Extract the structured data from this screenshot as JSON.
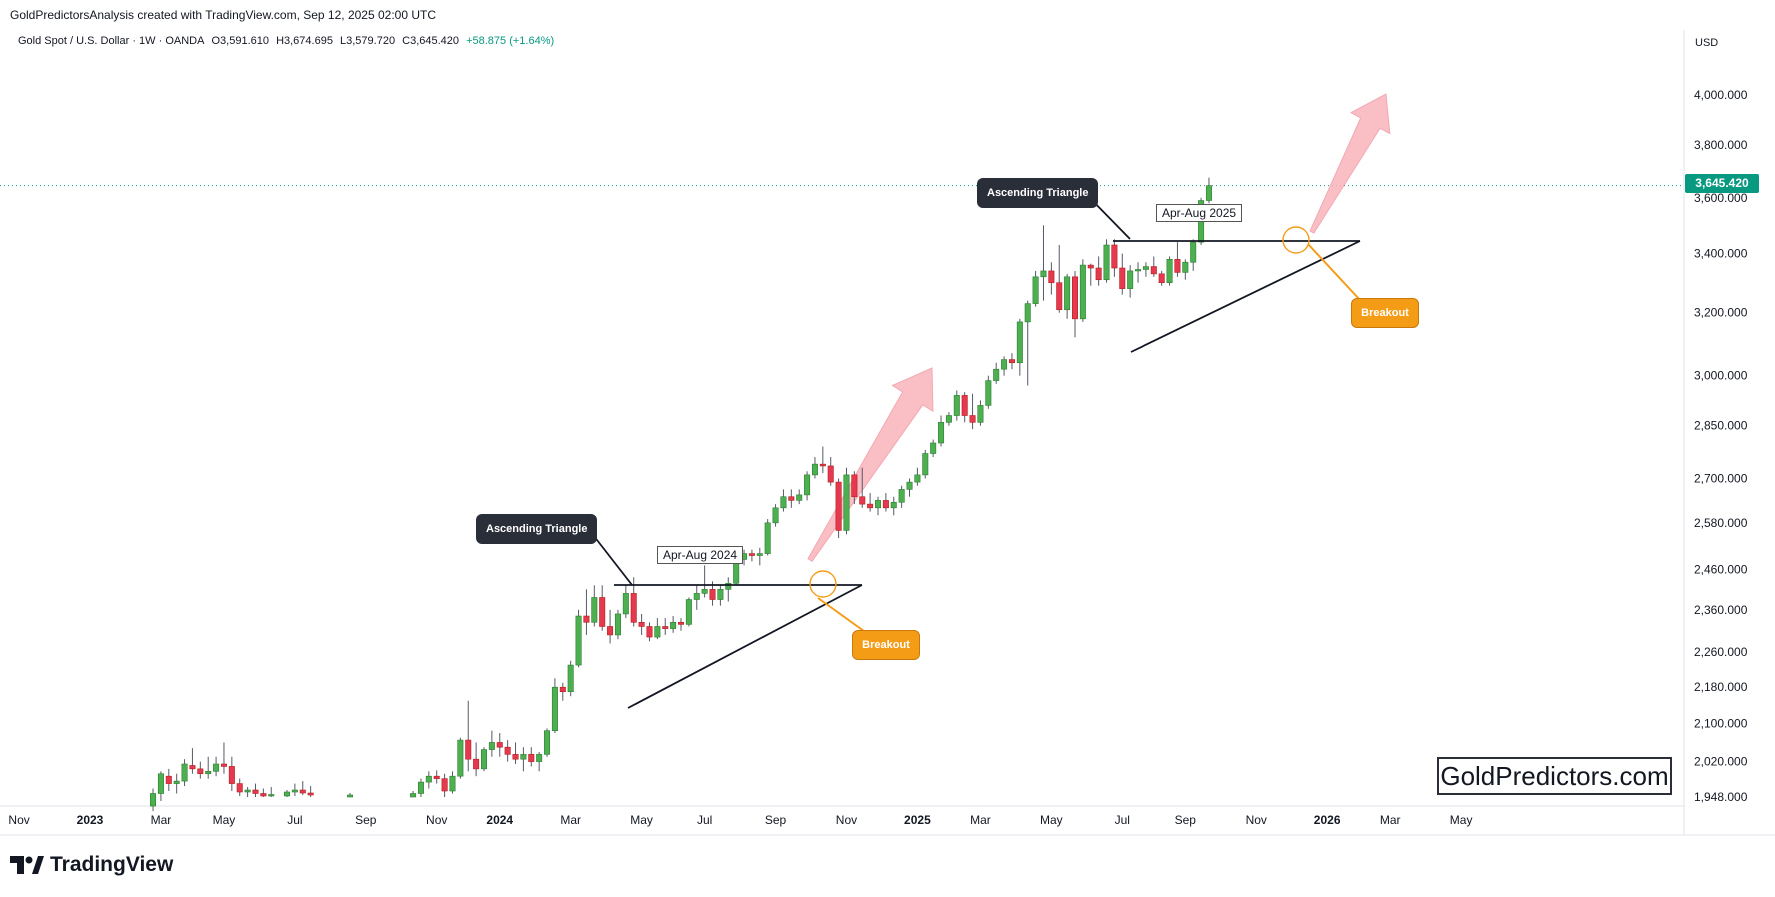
{
  "header": {
    "attribution": "GoldPredictorsAnalysis created with TradingView.com, Sep 12, 2025 02:00 UTC"
  },
  "legend": {
    "symbol": "Gold Spot / U.S. Dollar · 1W · OANDA",
    "open": "O3,591.610",
    "high": "H3,674.695",
    "low": "L3,579.720",
    "close": "C3,645.420",
    "change": "+58.875 (+1.64%)"
  },
  "currency_label": "USD",
  "last_price_tag": "3,645.420",
  "watermark": "GoldPredictors.com",
  "brand": "TradingView",
  "annotations": {
    "triangle_1": {
      "title": "Ascending Triangle",
      "period": "Apr-Aug 2024",
      "breakout": "Breakout"
    },
    "triangle_2": {
      "title": "Ascending Triangle",
      "period": "Apr-Aug 2025",
      "breakout": "Breakout"
    }
  },
  "colors": {
    "up": "#4caf50",
    "down": "#e53950",
    "up_border": "#2e7d32",
    "down_border": "#b71c1c",
    "last_price": "#089981",
    "arrow": "#f8b4bc",
    "callout_dark": "#2a2e39",
    "callout_orange": "#f59c17"
  },
  "chart_data": {
    "type": "candlestick",
    "interval": "1W",
    "y_scale": "log",
    "ylim": [
      1948,
      4100
    ],
    "y_ticks": [
      {
        "value": 4000,
        "label": "4,000.000"
      },
      {
        "value": 3800,
        "label": "3,800.000"
      },
      {
        "value": 3600,
        "label": "3,600.000"
      },
      {
        "value": 3400,
        "label": "3,400.000"
      },
      {
        "value": 3200,
        "label": "3,200.000"
      },
      {
        "value": 3000,
        "label": "3,000.000"
      },
      {
        "value": 2850,
        "label": "2,850.000"
      },
      {
        "value": 2700,
        "label": "2,700.000"
      },
      {
        "value": 2580,
        "label": "2,580.000"
      },
      {
        "value": 2460,
        "label": "2,460.000"
      },
      {
        "value": 2360,
        "label": "2,360.000"
      },
      {
        "value": 2260,
        "label": "2,260.000"
      },
      {
        "value": 2180,
        "label": "2,180.000"
      },
      {
        "value": 2100,
        "label": "2,100.000"
      },
      {
        "value": 2020,
        "label": "2,020.000"
      },
      {
        "value": 1948,
        "label": "1,948.000"
      }
    ],
    "x_ticks": [
      {
        "label": "Nov",
        "bold": false,
        "week": -9
      },
      {
        "label": "2023",
        "bold": true,
        "week": 0
      },
      {
        "label": "Mar",
        "bold": false,
        "week": 9
      },
      {
        "label": "May",
        "bold": false,
        "week": 17
      },
      {
        "label": "Jul",
        "bold": false,
        "week": 26
      },
      {
        "label": "Sep",
        "bold": false,
        "week": 35
      },
      {
        "label": "Nov",
        "bold": false,
        "week": 44
      },
      {
        "label": "2024",
        "bold": true,
        "week": 52
      },
      {
        "label": "Mar",
        "bold": false,
        "week": 61
      },
      {
        "label": "May",
        "bold": false,
        "week": 70
      },
      {
        "label": "Jul",
        "bold": false,
        "week": 78
      },
      {
        "label": "Sep",
        "bold": false,
        "week": 87
      },
      {
        "label": "Nov",
        "bold": false,
        "week": 96
      },
      {
        "label": "2025",
        "bold": true,
        "week": 105
      },
      {
        "label": "Mar",
        "bold": false,
        "week": 113
      },
      {
        "label": "May",
        "bold": false,
        "week": 122
      },
      {
        "label": "Jul",
        "bold": false,
        "week": 131
      },
      {
        "label": "Sep",
        "bold": false,
        "week": 139
      },
      {
        "label": "Nov",
        "bold": false,
        "week": 148
      },
      {
        "label": "2026",
        "bold": true,
        "week": 157
      },
      {
        "label": "Mar",
        "bold": false,
        "week": 165
      },
      {
        "label": "May",
        "bold": false,
        "week": 174
      }
    ],
    "last_close": 3645.42,
    "candles": [
      {
        "w": 8,
        "o": 1930,
        "h": 1965,
        "l": 1920,
        "c": 1955
      },
      {
        "w": 9,
        "o": 1955,
        "h": 2000,
        "l": 1940,
        "c": 1995
      },
      {
        "w": 10,
        "o": 1990,
        "h": 2005,
        "l": 1960,
        "c": 1975
      },
      {
        "w": 11,
        "o": 1975,
        "h": 1995,
        "l": 1955,
        "c": 1980
      },
      {
        "w": 12,
        "o": 1980,
        "h": 2025,
        "l": 1970,
        "c": 2015
      },
      {
        "w": 13,
        "o": 2012,
        "h": 2048,
        "l": 1995,
        "c": 2005
      },
      {
        "w": 14,
        "o": 2005,
        "h": 2020,
        "l": 1985,
        "c": 1995
      },
      {
        "w": 15,
        "o": 1995,
        "h": 2030,
        "l": 1985,
        "c": 2000
      },
      {
        "w": 16,
        "o": 2000,
        "h": 2030,
        "l": 1990,
        "c": 2015
      },
      {
        "w": 17,
        "o": 2015,
        "h": 2060,
        "l": 1995,
        "c": 2010
      },
      {
        "w": 18,
        "o": 2010,
        "h": 2030,
        "l": 1960,
        "c": 1975
      },
      {
        "w": 19,
        "o": 1975,
        "h": 1985,
        "l": 1950,
        "c": 1958
      },
      {
        "w": 20,
        "o": 1958,
        "h": 1968,
        "l": 1948,
        "c": 1962
      },
      {
        "w": 21,
        "o": 1962,
        "h": 1975,
        "l": 1948,
        "c": 1955
      },
      {
        "w": 22,
        "o": 1955,
        "h": 1965,
        "l": 1948,
        "c": 1950
      },
      {
        "w": 23,
        "o": 1950,
        "h": 1968,
        "l": 1948,
        "c": 1953
      },
      {
        "w": 25,
        "o": 1950,
        "h": 1962,
        "l": 1948,
        "c": 1958
      },
      {
        "w": 26,
        "o": 1958,
        "h": 1975,
        "l": 1950,
        "c": 1962
      },
      {
        "w": 27,
        "o": 1962,
        "h": 1980,
        "l": 1952,
        "c": 1956
      },
      {
        "w": 28,
        "o": 1956,
        "h": 1970,
        "l": 1948,
        "c": 1952
      },
      {
        "w": 33,
        "o": 1948,
        "h": 1956,
        "l": 1948,
        "c": 1952
      },
      {
        "w": 41,
        "o": 1948,
        "h": 1960,
        "l": 1948,
        "c": 1955
      },
      {
        "w": 42,
        "o": 1955,
        "h": 1985,
        "l": 1948,
        "c": 1978
      },
      {
        "w": 43,
        "o": 1978,
        "h": 2000,
        "l": 1965,
        "c": 1990
      },
      {
        "w": 44,
        "o": 1990,
        "h": 2002,
        "l": 1975,
        "c": 1985
      },
      {
        "w": 45,
        "o": 1985,
        "h": 1995,
        "l": 1948,
        "c": 1960
      },
      {
        "w": 46,
        "o": 1960,
        "h": 2000,
        "l": 1955,
        "c": 1990
      },
      {
        "w": 47,
        "o": 1990,
        "h": 2070,
        "l": 1985,
        "c": 2065
      },
      {
        "w": 48,
        "o": 2065,
        "h": 2150,
        "l": 2000,
        "c": 2025
      },
      {
        "w": 49,
        "o": 2025,
        "h": 2060,
        "l": 1990,
        "c": 2005
      },
      {
        "w": 50,
        "o": 2005,
        "h": 2050,
        "l": 2000,
        "c": 2045
      },
      {
        "w": 51,
        "o": 2045,
        "h": 2085,
        "l": 2030,
        "c": 2060
      },
      {
        "w": 52,
        "o": 2060,
        "h": 2080,
        "l": 2030,
        "c": 2050
      },
      {
        "w": 53,
        "o": 2050,
        "h": 2065,
        "l": 2020,
        "c": 2035
      },
      {
        "w": 54,
        "o": 2035,
        "h": 2060,
        "l": 2015,
        "c": 2025
      },
      {
        "w": 55,
        "o": 2025,
        "h": 2050,
        "l": 2000,
        "c": 2035
      },
      {
        "w": 56,
        "o": 2035,
        "h": 2050,
        "l": 2010,
        "c": 2020
      },
      {
        "w": 57,
        "o": 2020,
        "h": 2040,
        "l": 2000,
        "c": 2035
      },
      {
        "w": 58,
        "o": 2035,
        "h": 2090,
        "l": 2030,
        "c": 2085
      },
      {
        "w": 59,
        "o": 2085,
        "h": 2200,
        "l": 2080,
        "c": 2180
      },
      {
        "w": 60,
        "o": 2180,
        "h": 2190,
        "l": 2150,
        "c": 2170
      },
      {
        "w": 61,
        "o": 2170,
        "h": 2240,
        "l": 2160,
        "c": 2230
      },
      {
        "w": 62,
        "o": 2230,
        "h": 2360,
        "l": 2225,
        "c": 2345
      },
      {
        "w": 63,
        "o": 2345,
        "h": 2410,
        "l": 2300,
        "c": 2330
      },
      {
        "w": 64,
        "o": 2330,
        "h": 2420,
        "l": 2320,
        "c": 2390
      },
      {
        "w": 65,
        "o": 2390,
        "h": 2420,
        "l": 2310,
        "c": 2320
      },
      {
        "w": 66,
        "o": 2320,
        "h": 2360,
        "l": 2280,
        "c": 2300
      },
      {
        "w": 67,
        "o": 2300,
        "h": 2360,
        "l": 2290,
        "c": 2350
      },
      {
        "w": 68,
        "o": 2350,
        "h": 2420,
        "l": 2340,
        "c": 2400
      },
      {
        "w": 69,
        "o": 2400,
        "h": 2440,
        "l": 2320,
        "c": 2330
      },
      {
        "w": 70,
        "o": 2330,
        "h": 2350,
        "l": 2300,
        "c": 2320
      },
      {
        "w": 71,
        "o": 2320,
        "h": 2330,
        "l": 2285,
        "c": 2295
      },
      {
        "w": 72,
        "o": 2295,
        "h": 2340,
        "l": 2290,
        "c": 2320
      },
      {
        "w": 73,
        "o": 2320,
        "h": 2340,
        "l": 2300,
        "c": 2315
      },
      {
        "w": 74,
        "o": 2315,
        "h": 2345,
        "l": 2305,
        "c": 2330
      },
      {
        "w": 75,
        "o": 2330,
        "h": 2340,
        "l": 2310,
        "c": 2325
      },
      {
        "w": 76,
        "o": 2325,
        "h": 2390,
        "l": 2320,
        "c": 2385
      },
      {
        "w": 77,
        "o": 2385,
        "h": 2420,
        "l": 2360,
        "c": 2400
      },
      {
        "w": 78,
        "o": 2400,
        "h": 2470,
        "l": 2390,
        "c": 2410
      },
      {
        "w": 79,
        "o": 2410,
        "h": 2430,
        "l": 2370,
        "c": 2385
      },
      {
        "w": 80,
        "o": 2385,
        "h": 2420,
        "l": 2370,
        "c": 2410
      },
      {
        "w": 81,
        "o": 2410,
        "h": 2440,
        "l": 2380,
        "c": 2425
      },
      {
        "w": 82,
        "o": 2425,
        "h": 2500,
        "l": 2420,
        "c": 2485
      },
      {
        "w": 83,
        "o": 2485,
        "h": 2510,
        "l": 2470,
        "c": 2500
      },
      {
        "w": 84,
        "o": 2500,
        "h": 2510,
        "l": 2480,
        "c": 2495
      },
      {
        "w": 85,
        "o": 2495,
        "h": 2515,
        "l": 2470,
        "c": 2500
      },
      {
        "w": 86,
        "o": 2500,
        "h": 2590,
        "l": 2495,
        "c": 2580
      },
      {
        "w": 87,
        "o": 2580,
        "h": 2630,
        "l": 2570,
        "c": 2620
      },
      {
        "w": 88,
        "o": 2620,
        "h": 2670,
        "l": 2610,
        "c": 2650
      },
      {
        "w": 89,
        "o": 2650,
        "h": 2670,
        "l": 2620,
        "c": 2640
      },
      {
        "w": 90,
        "o": 2640,
        "h": 2670,
        "l": 2630,
        "c": 2655
      },
      {
        "w": 91,
        "o": 2655,
        "h": 2720,
        "l": 2640,
        "c": 2710
      },
      {
        "w": 92,
        "o": 2710,
        "h": 2760,
        "l": 2700,
        "c": 2740
      },
      {
        "w": 93,
        "o": 2740,
        "h": 2790,
        "l": 2715,
        "c": 2735
      },
      {
        "w": 94,
        "o": 2735,
        "h": 2760,
        "l": 2680,
        "c": 2690
      },
      {
        "w": 95,
        "o": 2690,
        "h": 2700,
        "l": 2540,
        "c": 2560
      },
      {
        "w": 96,
        "o": 2560,
        "h": 2730,
        "l": 2550,
        "c": 2710
      },
      {
        "w": 97,
        "o": 2710,
        "h": 2720,
        "l": 2630,
        "c": 2650
      },
      {
        "w": 98,
        "o": 2650,
        "h": 2730,
        "l": 2620,
        "c": 2630
      },
      {
        "w": 99,
        "o": 2630,
        "h": 2660,
        "l": 2610,
        "c": 2620
      },
      {
        "w": 100,
        "o": 2620,
        "h": 2650,
        "l": 2600,
        "c": 2640
      },
      {
        "w": 101,
        "o": 2640,
        "h": 2660,
        "l": 2610,
        "c": 2620
      },
      {
        "w": 102,
        "o": 2620,
        "h": 2650,
        "l": 2600,
        "c": 2635
      },
      {
        "w": 103,
        "o": 2635,
        "h": 2680,
        "l": 2620,
        "c": 2670
      },
      {
        "w": 104,
        "o": 2670,
        "h": 2700,
        "l": 2650,
        "c": 2690
      },
      {
        "w": 105,
        "o": 2690,
        "h": 2730,
        "l": 2680,
        "c": 2710
      },
      {
        "w": 106,
        "o": 2710,
        "h": 2780,
        "l": 2700,
        "c": 2770
      },
      {
        "w": 107,
        "o": 2770,
        "h": 2810,
        "l": 2760,
        "c": 2800
      },
      {
        "w": 108,
        "o": 2800,
        "h": 2880,
        "l": 2790,
        "c": 2860
      },
      {
        "w": 109,
        "o": 2860,
        "h": 2890,
        "l": 2850,
        "c": 2880
      },
      {
        "w": 110,
        "o": 2880,
        "h": 2955,
        "l": 2865,
        "c": 2940
      },
      {
        "w": 111,
        "o": 2940,
        "h": 2950,
        "l": 2860,
        "c": 2880
      },
      {
        "w": 112,
        "o": 2880,
        "h": 2945,
        "l": 2840,
        "c": 2860
      },
      {
        "w": 113,
        "o": 2860,
        "h": 2925,
        "l": 2850,
        "c": 2910
      },
      {
        "w": 114,
        "o": 2910,
        "h": 3000,
        "l": 2900,
        "c": 2985
      },
      {
        "w": 115,
        "o": 2985,
        "h": 3040,
        "l": 2975,
        "c": 3020
      },
      {
        "w": 116,
        "o": 3020,
        "h": 3060,
        "l": 3000,
        "c": 3050
      },
      {
        "w": 117,
        "o": 3050,
        "h": 3070,
        "l": 3020,
        "c": 3040
      },
      {
        "w": 118,
        "o": 3040,
        "h": 3180,
        "l": 3000,
        "c": 3170
      },
      {
        "w": 119,
        "o": 3170,
        "h": 3240,
        "l": 2970,
        "c": 3230
      },
      {
        "w": 120,
        "o": 3230,
        "h": 3340,
        "l": 3220,
        "c": 3320
      },
      {
        "w": 121,
        "o": 3320,
        "h": 3500,
        "l": 3240,
        "c": 3340
      },
      {
        "w": 122,
        "o": 3340,
        "h": 3370,
        "l": 3260,
        "c": 3300
      },
      {
        "w": 123,
        "o": 3300,
        "h": 3430,
        "l": 3200,
        "c": 3210
      },
      {
        "w": 124,
        "o": 3210,
        "h": 3330,
        "l": 3180,
        "c": 3320
      },
      {
        "w": 125,
        "o": 3320,
        "h": 3340,
        "l": 3120,
        "c": 3180
      },
      {
        "w": 126,
        "o": 3180,
        "h": 3380,
        "l": 3170,
        "c": 3360
      },
      {
        "w": 127,
        "o": 3360,
        "h": 3365,
        "l": 3290,
        "c": 3350
      },
      {
        "w": 128,
        "o": 3350,
        "h": 3390,
        "l": 3290,
        "c": 3310
      },
      {
        "w": 129,
        "o": 3310,
        "h": 3450,
        "l": 3300,
        "c": 3430
      },
      {
        "w": 130,
        "o": 3430,
        "h": 3450,
        "l": 3320,
        "c": 3350
      },
      {
        "w": 131,
        "o": 3350,
        "h": 3400,
        "l": 3260,
        "c": 3280
      },
      {
        "w": 132,
        "o": 3280,
        "h": 3360,
        "l": 3250,
        "c": 3340
      },
      {
        "w": 133,
        "o": 3340,
        "h": 3370,
        "l": 3300,
        "c": 3345
      },
      {
        "w": 134,
        "o": 3345,
        "h": 3370,
        "l": 3320,
        "c": 3355
      },
      {
        "w": 135,
        "o": 3355,
        "h": 3390,
        "l": 3320,
        "c": 3330
      },
      {
        "w": 136,
        "o": 3330,
        "h": 3340,
        "l": 3290,
        "c": 3300
      },
      {
        "w": 137,
        "o": 3300,
        "h": 3390,
        "l": 3290,
        "c": 3380
      },
      {
        "w": 138,
        "o": 3380,
        "h": 3440,
        "l": 3320,
        "c": 3335
      },
      {
        "w": 139,
        "o": 3335,
        "h": 3380,
        "l": 3310,
        "c": 3370
      },
      {
        "w": 140,
        "o": 3370,
        "h": 3450,
        "l": 3340,
        "c": 3440
      },
      {
        "w": 141,
        "o": 3440,
        "h": 3600,
        "l": 3430,
        "c": 3590
      },
      {
        "w": 142,
        "o": 3590,
        "h": 3675,
        "l": 3580,
        "c": 3645
      }
    ]
  }
}
